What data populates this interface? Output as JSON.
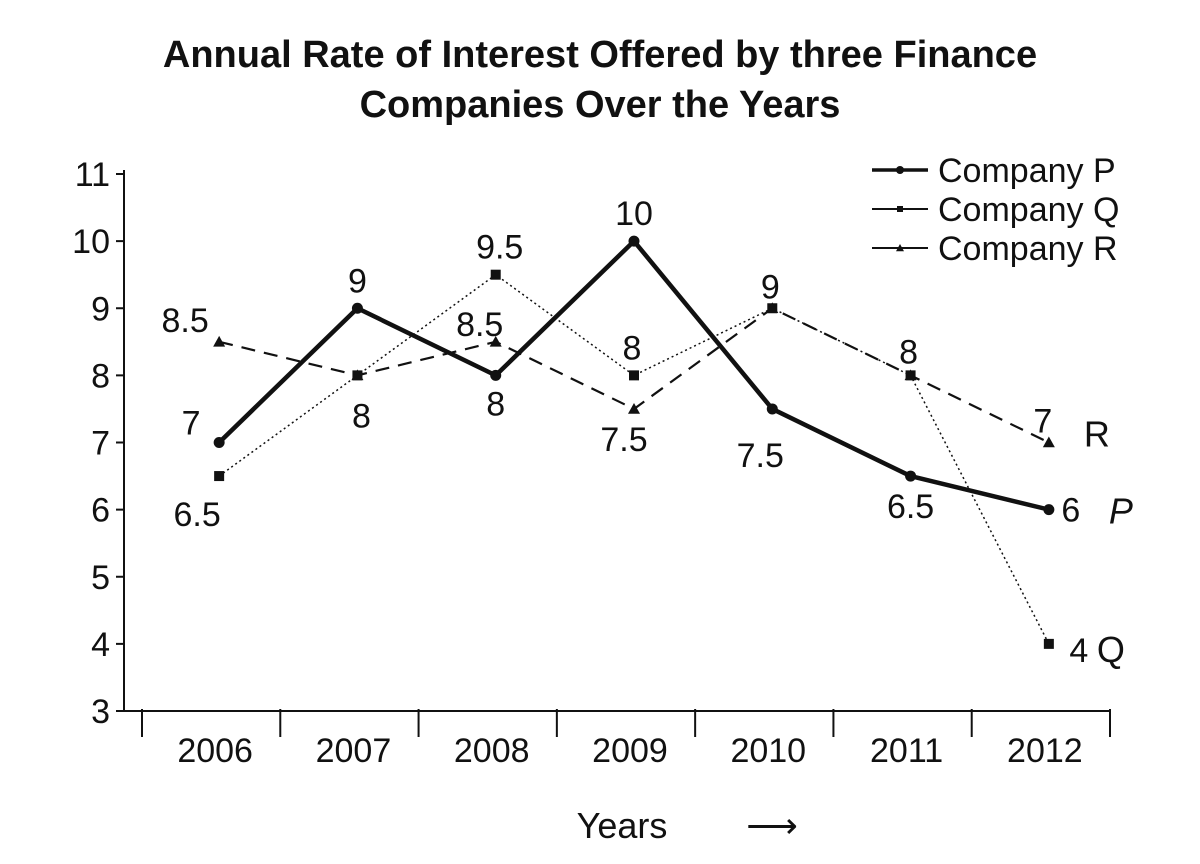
{
  "chart_data": {
    "type": "line",
    "title_lines": [
      "Annual Rate of Interest Offered by three Finance",
      "Companies Over the Years"
    ],
    "xlabel": "Years",
    "xlabel_arrow": "⟶",
    "ylabel": "",
    "categories": [
      "2006",
      "2007",
      "2008",
      "2009",
      "2010",
      "2011",
      "2012"
    ],
    "yticks": [
      "3",
      "4",
      "5",
      "6",
      "7",
      "8",
      "9",
      "10",
      "11"
    ],
    "ylim": [
      3,
      11
    ],
    "legend_position": "top-right",
    "series": [
      {
        "name": "Company P",
        "marker": "circle",
        "style": "solid-bold",
        "values": [
          7,
          9,
          8,
          10,
          7.5,
          6.5,
          6
        ],
        "labels": [
          "7",
          "9",
          "8",
          "10",
          "7.5",
          "6.5",
          "6"
        ],
        "end_tag": "P"
      },
      {
        "name": "Company Q",
        "marker": "square",
        "style": "dotted",
        "values": [
          6.5,
          8,
          9.5,
          8,
          9,
          8,
          4
        ],
        "labels": [
          "6.5",
          "8",
          "9.5",
          "8",
          "9",
          "8",
          "4"
        ],
        "end_tag": "Q"
      },
      {
        "name": "Company R",
        "marker": "triangle",
        "style": "dashed",
        "values": [
          8.5,
          8,
          8.5,
          7.5,
          9,
          8,
          7
        ],
        "labels": [
          "8.5",
          "",
          "8.5",
          "7.5",
          "",
          "",
          "7"
        ],
        "end_tag": "R"
      }
    ]
  }
}
